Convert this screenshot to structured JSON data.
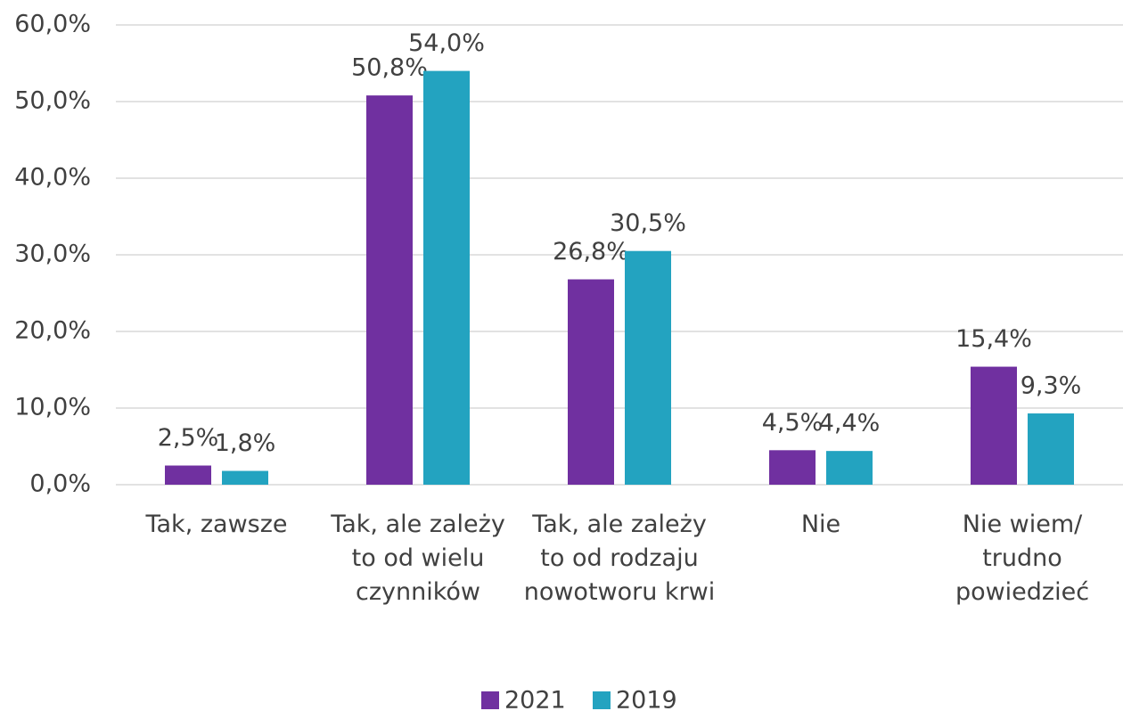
{
  "chart_data": {
    "type": "bar",
    "categories": [
      "Tak, zawsze",
      "Tak, ale zależy to od wielu czynników",
      "Tak, ale zależy to od rodzaju nowotworu krwi",
      "Nie",
      "Nie wiem/ trudno powiedzieć"
    ],
    "series": [
      {
        "name": "2021",
        "color": "#7030a0",
        "values": [
          2.5,
          50.8,
          26.8,
          4.5,
          15.4
        ],
        "value_labels": [
          "2,5%",
          "50,8%",
          "26,8%",
          "4,5%",
          "15,4%"
        ]
      },
      {
        "name": "2019",
        "color": "#23a3c0",
        "values": [
          1.8,
          54.0,
          30.5,
          4.4,
          9.3
        ],
        "value_labels": [
          "1,8%",
          "54,0%",
          "30,5%",
          "4,4%",
          "9,3%"
        ]
      }
    ],
    "ylim": [
      0,
      60
    ],
    "yticks": [
      {
        "value": 0,
        "label": "0,0%"
      },
      {
        "value": 10,
        "label": "10,0%"
      },
      {
        "value": 20,
        "label": "20,0%"
      },
      {
        "value": 30,
        "label": "30,0%"
      },
      {
        "value": 40,
        "label": "40,0%"
      },
      {
        "value": 50,
        "label": "50,0%"
      },
      {
        "value": 60,
        "label": "60,0%"
      }
    ],
    "grid": true,
    "legend": "bottom"
  }
}
